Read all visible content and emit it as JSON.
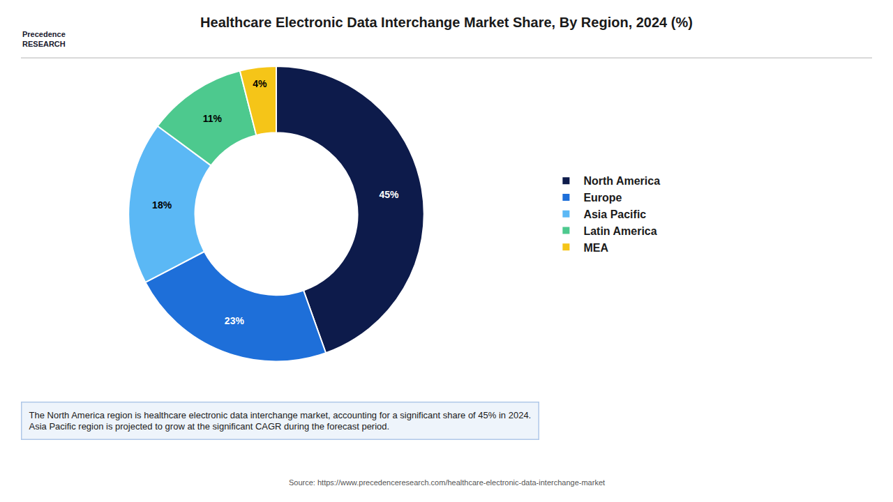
{
  "chart_data": {
    "type": "donut",
    "title": "Healthcare Electronic Data Interchange Market Share, By Region, 2024 (%)",
    "categories": [
      "North America",
      "Europe",
      "Asia Pacific",
      "Latin America",
      "MEA"
    ],
    "values": [
      45,
      23,
      18,
      11,
      4
    ],
    "value_labels": [
      "45%",
      "23%",
      "18%",
      "11%",
      "4%"
    ],
    "colors": [
      "#0d1b4b",
      "#1e6fd9",
      "#5bb8f5",
      "#4dc98e",
      "#f5c518"
    ],
    "data_labels": true,
    "legend": "right",
    "annotations": [
      "Precedence\nRESEARCH",
      "The North America region is healthcare electronic data interchange market, accounting for a significant share of 45% in 2024.\nAsia Pacific region is projected to grow at the significant CAGR during the forecast period.",
      "Source: https://www.precedenceresearch.com/healthcare-electronic-data-interchange-market"
    ]
  }
}
